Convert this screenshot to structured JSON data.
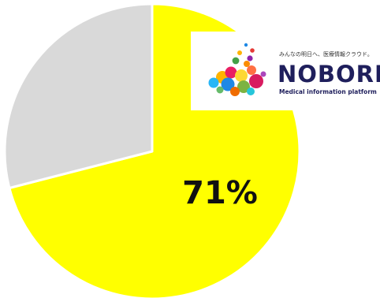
{
  "chart_data": {
    "type": "pie",
    "slices": [
      {
        "label": "71%",
        "value": 71,
        "color": "#ffff00"
      },
      {
        "label": "",
        "value": 29,
        "color": "#d9d9d9"
      }
    ],
    "start_angle_deg": 0,
    "direction": "clockwise"
  },
  "logo": {
    "tagline": "みんなの明日へ、医療情報クラウド。",
    "wordmark": "NOBORI",
    "subtitle": "Medical information platform",
    "wordmark_color": "#1f1f5c"
  }
}
